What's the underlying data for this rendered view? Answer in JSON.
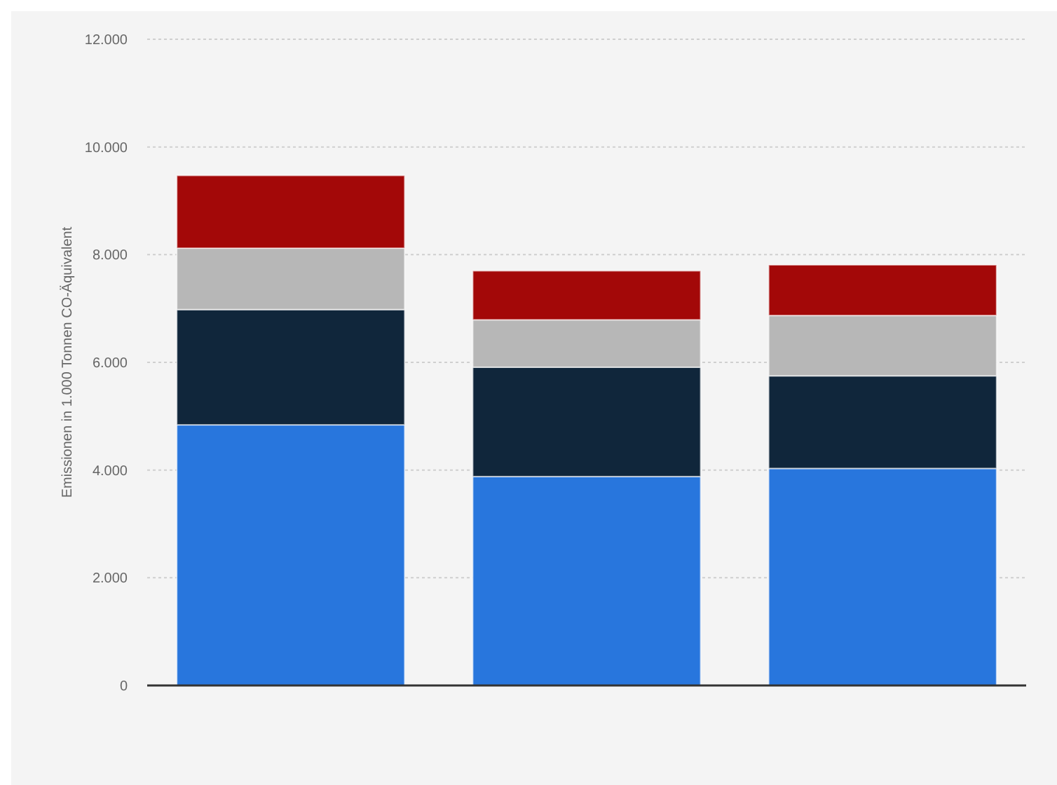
{
  "chart_data": {
    "type": "bar",
    "stacked": true,
    "ylabel": "Emissionen in 1.000 Tonnen CO-Äquivalent",
    "categories": [
      null,
      null,
      null
    ],
    "series": [
      {
        "color": "#2876dd",
        "values": [
          4840,
          3880,
          4030
        ]
      },
      {
        "color": "#10263b",
        "values": [
          2140,
          2030,
          1720
        ]
      },
      {
        "color": "#b7b7b7",
        "values": [
          1140,
          880,
          1120
        ]
      },
      {
        "color": "#a30808",
        "values": [
          1350,
          910,
          940
        ]
      }
    ],
    "ylim": [
      0,
      12000
    ],
    "yticks": [
      {
        "value": 0,
        "label": "0"
      },
      {
        "value": 2000,
        "label": "2.000"
      },
      {
        "value": 4000,
        "label": "4.000"
      },
      {
        "value": 6000,
        "label": "6.000"
      },
      {
        "value": 8000,
        "label": "8.000"
      },
      {
        "value": 10000,
        "label": "10.000"
      },
      {
        "value": 12000,
        "label": "12.000"
      }
    ],
    "grid": "y"
  }
}
